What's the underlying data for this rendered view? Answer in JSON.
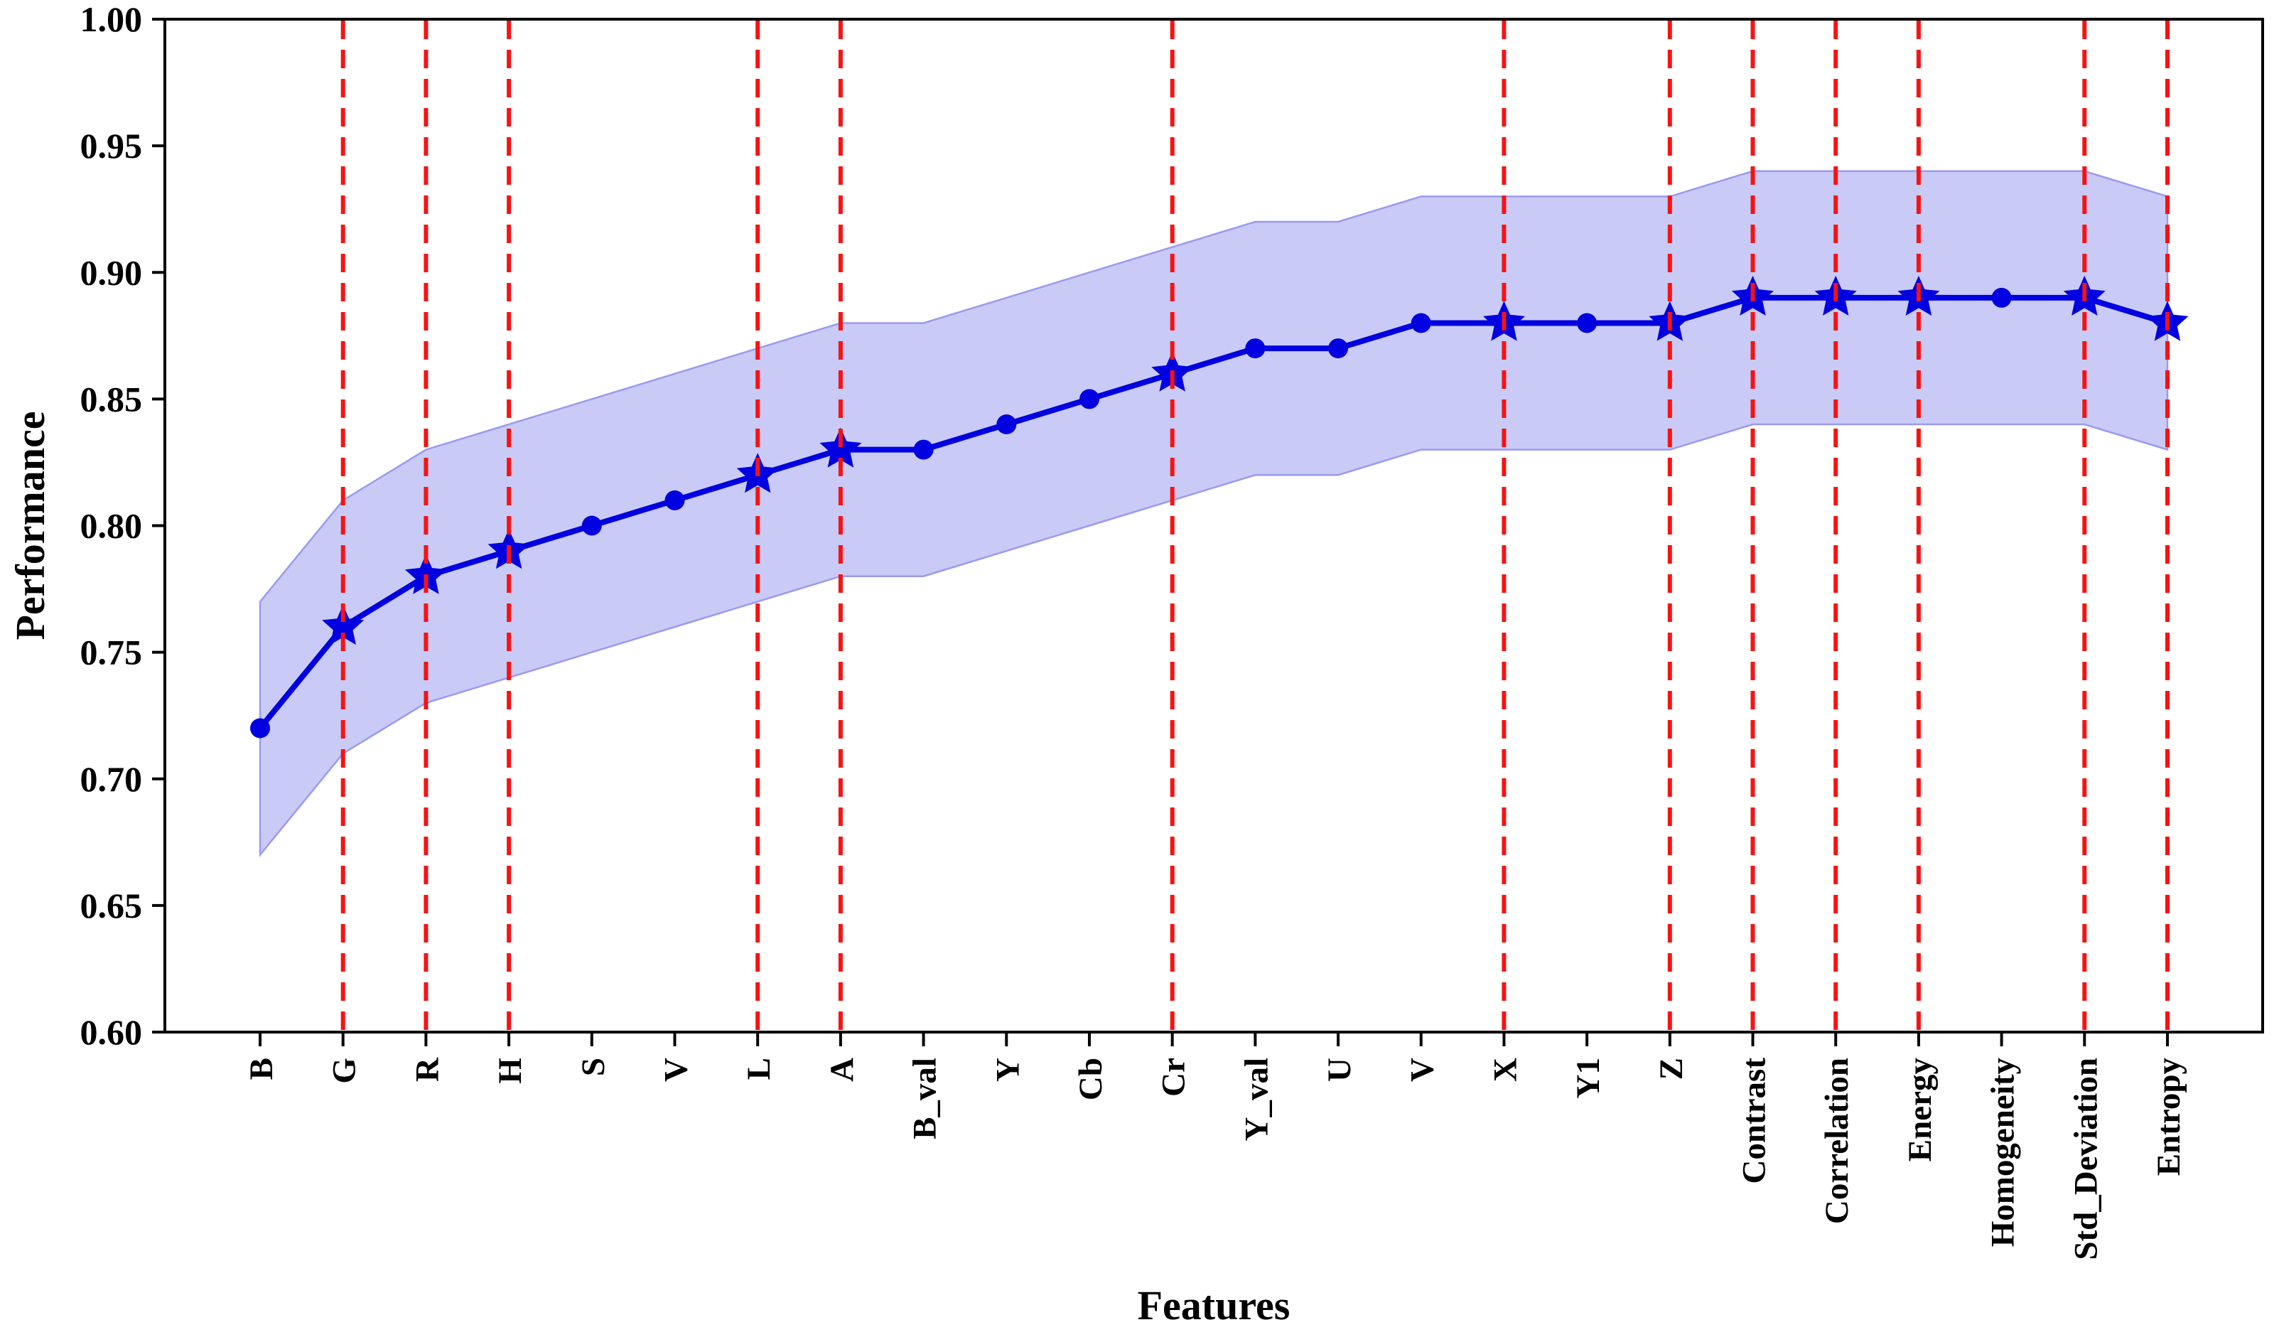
{
  "page": {
    "background": "#ffffff"
  },
  "chart_data": {
    "type": "line",
    "title": "",
    "xlabel": "Features",
    "ylabel": "Performance",
    "categories": [
      "B",
      "G",
      "R",
      "H",
      "S",
      "V",
      "L",
      "A",
      "B_val",
      "Y",
      "Cb",
      "Cr",
      "Y_val",
      "U",
      "V",
      "X",
      "Y1",
      "Z",
      "Contrast",
      "Correlation",
      "Energy",
      "Homogeneity",
      "Std_Deviation",
      "Entropy"
    ],
    "series": [
      {
        "name": "Performance",
        "values": [
          0.72,
          0.76,
          0.78,
          0.79,
          0.8,
          0.81,
          0.82,
          0.83,
          0.83,
          0.84,
          0.85,
          0.86,
          0.87,
          0.87,
          0.88,
          0.88,
          0.88,
          0.88,
          0.89,
          0.89,
          0.89,
          0.89,
          0.89,
          0.88
        ]
      }
    ],
    "band": {
      "upper": [
        0.77,
        0.81,
        0.83,
        0.84,
        0.85,
        0.86,
        0.87,
        0.88,
        0.88,
        0.89,
        0.9,
        0.91,
        0.92,
        0.92,
        0.93,
        0.93,
        0.93,
        0.93,
        0.94,
        0.94,
        0.94,
        0.94,
        0.94,
        0.93
      ],
      "lower": [
        0.67,
        0.71,
        0.73,
        0.74,
        0.75,
        0.76,
        0.77,
        0.78,
        0.78,
        0.79,
        0.8,
        0.81,
        0.82,
        0.82,
        0.83,
        0.83,
        0.83,
        0.83,
        0.84,
        0.84,
        0.84,
        0.84,
        0.84,
        0.83
      ]
    },
    "selected_indices": [
      1,
      2,
      3,
      6,
      7,
      11,
      15,
      17,
      18,
      19,
      20,
      22,
      23
    ],
    "selected_features": [
      "G",
      "R",
      "H",
      "L",
      "A",
      "Cr",
      "X",
      "Z",
      "Contrast",
      "Correlation",
      "Energy",
      "Std_Deviation",
      "Entropy"
    ],
    "marker_default": "circle",
    "marker_selected": "star",
    "vline_style": "dashed",
    "ylim": [
      0.6,
      1.0
    ],
    "yticks": [
      "0.60",
      "0.65",
      "0.70",
      "0.75",
      "0.80",
      "0.85",
      "0.90",
      "0.95",
      "1.00"
    ],
    "grid": false,
    "legend": null,
    "colors": {
      "line": "#0000e0",
      "marker": "#0000e0",
      "band_fill": "#cacaf7",
      "band_edge": "#9a9af0",
      "vline": "#f81212",
      "axis": "#000000",
      "text": "#000000"
    }
  }
}
